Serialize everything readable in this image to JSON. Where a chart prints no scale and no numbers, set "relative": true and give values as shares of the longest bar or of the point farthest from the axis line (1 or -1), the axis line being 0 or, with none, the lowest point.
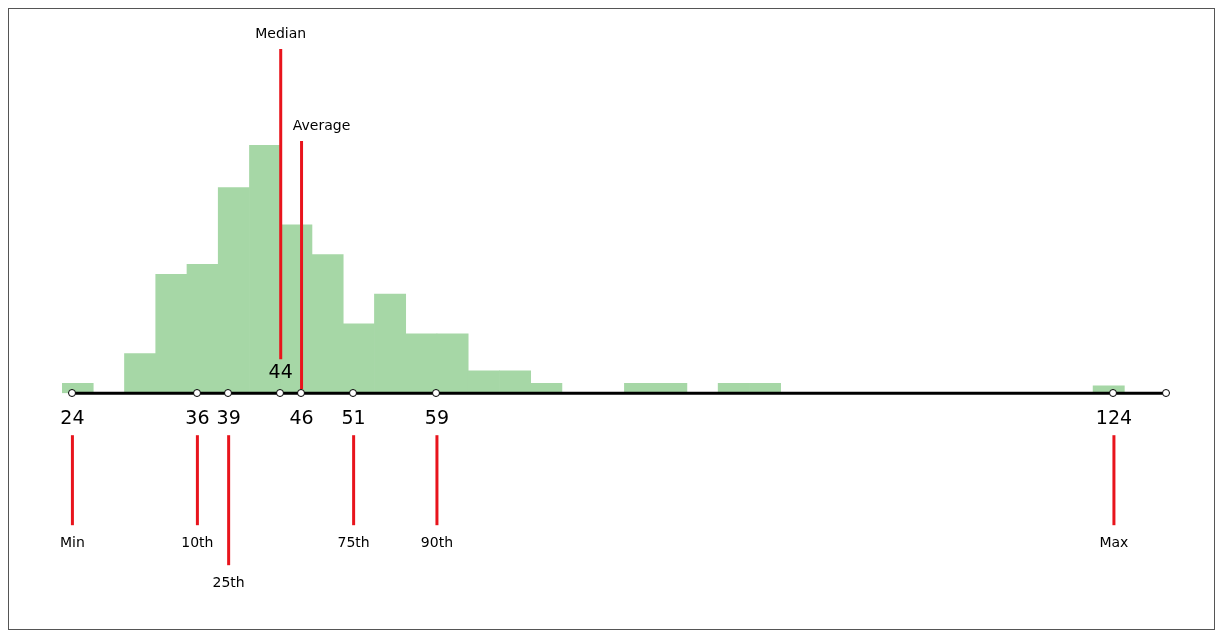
{
  "chart_data": {
    "type": "bar",
    "relative": true,
    "color": "#a6d7a6",
    "x": [
      24.5,
      30.5,
      33.5,
      36.5,
      39.5,
      42.5,
      45.5,
      48.5,
      51.5,
      54.5,
      57.5,
      60.5,
      63.5,
      66.5,
      69.5,
      78.5,
      81.5,
      87.5,
      90.5,
      123.5
    ],
    "values": [
      0.04,
      0.16,
      0.48,
      0.52,
      0.83,
      1,
      0.68,
      0.56,
      0.28,
      0.4,
      0.24,
      0.24,
      0.09,
      0.09,
      0.04,
      0.04,
      0.04,
      0.04,
      0.04,
      0.03
    ],
    "xlim": [
      23,
      129
    ],
    "xticks": [
      24,
      36,
      39,
      46,
      51,
      59,
      124
    ],
    "annotations": [
      {
        "text": "44",
        "x": 44
      }
    ],
    "ref_lines": [
      {
        "axis": "x",
        "value": 44,
        "label": "Median",
        "color": "#e8141c"
      },
      {
        "axis": "x",
        "value": 46,
        "label": "Average",
        "color": "#e8141c"
      },
      {
        "axis": "x",
        "value": 24,
        "label": "Min",
        "color": "#e8141c"
      },
      {
        "axis": "x",
        "value": 36,
        "label": "10th",
        "color": "#e8141c"
      },
      {
        "axis": "x",
        "value": 39,
        "label": "25th",
        "color": "#e8141c"
      },
      {
        "axis": "x",
        "value": 51,
        "label": "75th",
        "color": "#e8141c"
      },
      {
        "axis": "x",
        "value": 59,
        "label": "90th",
        "color": "#e8141c"
      },
      {
        "axis": "x",
        "value": 124,
        "label": "Max",
        "color": "#e8141c"
      }
    ]
  }
}
